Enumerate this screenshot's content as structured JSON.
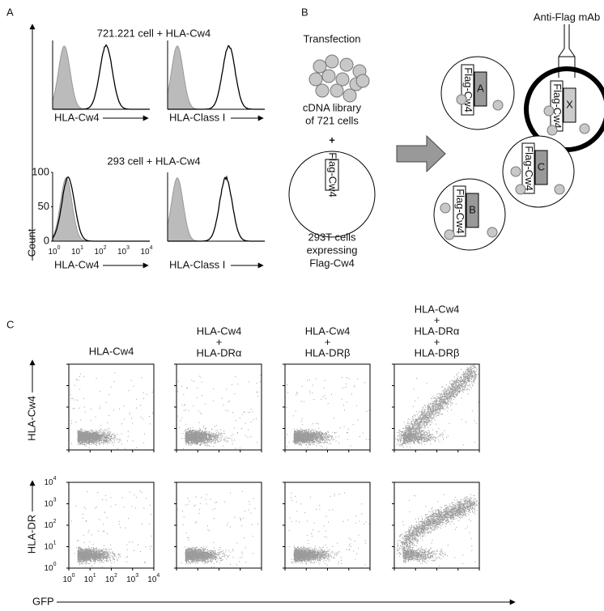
{
  "panel_a": {
    "label": "A",
    "title_top": "721.221 cell + HLA-Cw4",
    "title_bottom": "293 cell + HLA-Cw4",
    "x_labels": [
      "HLA-Cw4",
      "HLA-Class I",
      "HLA-Cw4",
      "HLA-Class I"
    ],
    "y_label": "Count",
    "y_ticks": [
      "0",
      "50",
      "100"
    ],
    "x_ticks": [
      {
        "base": "10",
        "exp": "0"
      },
      {
        "base": "10",
        "exp": "1"
      },
      {
        "base": "10",
        "exp": "2"
      },
      {
        "base": "10",
        "exp": "3"
      },
      {
        "base": "10",
        "exp": "4"
      }
    ]
  },
  "panel_b": {
    "label": "B",
    "transfection": "Transfection",
    "library": [
      "cDNA library",
      "of 721 cells"
    ],
    "plus": "+",
    "flag": "Flag-Cw4",
    "cells": [
      "293T cells",
      "expressing",
      "Flag-Cw4"
    ],
    "antibody": "Anti-Flag mAb",
    "clones": [
      "A",
      "X",
      "C",
      "B"
    ]
  },
  "panel_c": {
    "label": "C",
    "columns": [
      [
        "HLA-Cw4"
      ],
      [
        "HLA-Cw4",
        "+",
        "HLA-DRα"
      ],
      [
        "HLA-Cw4",
        "+",
        "HLA-DRβ"
      ],
      [
        "HLA-Cw4",
        "+",
        "HLA-DRα",
        "+",
        "HLA-DRβ"
      ]
    ],
    "y_labels": [
      "HLA-Cw4",
      "HLA-DR"
    ],
    "x_label": "GFP",
    "ticks": [
      {
        "base": "10",
        "exp": "0"
      },
      {
        "base": "10",
        "exp": "1"
      },
      {
        "base": "10",
        "exp": "2"
      },
      {
        "base": "10",
        "exp": "3"
      },
      {
        "base": "10",
        "exp": "4"
      }
    ]
  }
}
